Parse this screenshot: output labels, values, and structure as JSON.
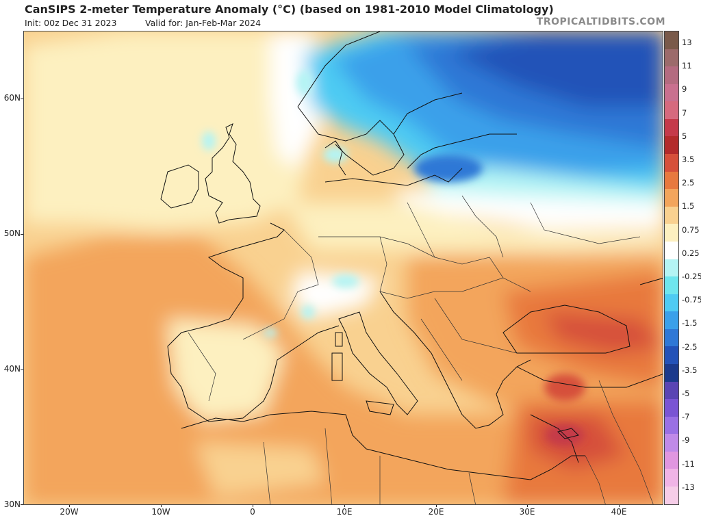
{
  "header": {
    "title": "CanSIPS 2-meter Temperature Anomaly (°C) (based on 1981-2010 Model Climatology)",
    "init": "Init: 00z Dec 31 2023",
    "valid": "Valid for: Jan-Feb-Mar 2024",
    "brand": "TROPICALTIDBITS.COM"
  },
  "map": {
    "lat_labels": [
      "60N",
      "50N",
      "40N",
      "30N"
    ],
    "lon_labels": [
      "20W",
      "10W",
      "0",
      "10E",
      "20E",
      "30E",
      "40E"
    ]
  },
  "colorbar": {
    "labels": [
      "13",
      "11",
      "9",
      "7",
      "5",
      "3.5",
      "2.5",
      "1.5",
      "0.75",
      "0.25",
      "-0.25",
      "-0.75",
      "-1.5",
      "-2.5",
      "-3.5",
      "-5",
      "-7",
      "-9",
      "-11",
      "-13"
    ],
    "colors": [
      "#7a5a4a",
      "#9c6b6b",
      "#b46b80",
      "#c9708f",
      "#d66a7e",
      "#c53a4a",
      "#b32b2b",
      "#d6503a",
      "#e8793e",
      "#f3a55c",
      "#f9d190",
      "#fdf0c0",
      "#ffffff",
      "#b4f4f4",
      "#6ee6ee",
      "#4ecbf3",
      "#3aa0ea",
      "#2f78d6",
      "#2352b8",
      "#1b3a8c",
      "#5a45b4",
      "#7a55d4",
      "#9a70e4",
      "#c08ae8",
      "#e096e0",
      "#f0b4e6",
      "#f6cde8"
    ]
  }
}
